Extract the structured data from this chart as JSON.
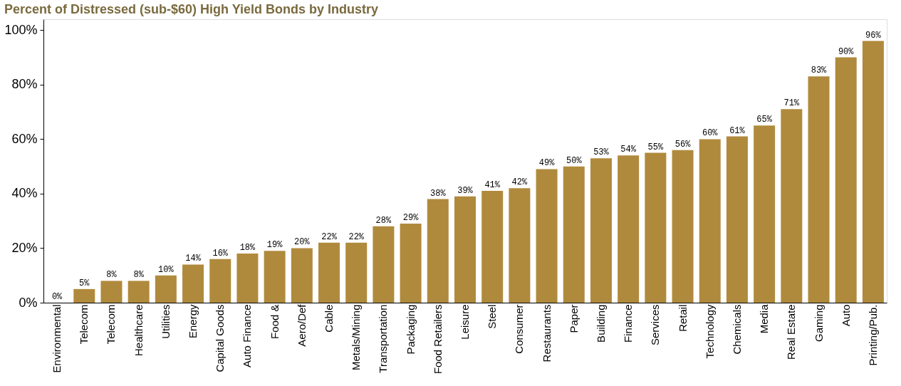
{
  "chart_data": {
    "type": "bar",
    "title": "Percent of Distressed (sub-$60) High Yield Bonds by Industry",
    "categories": [
      "Environmental",
      "Telecom",
      "Telecom",
      "Healthcare",
      "Utilities",
      "Energy",
      "Capital Goods",
      "Auto Finance",
      "Food &",
      "Aero/Def",
      "Cable",
      "Metals/Mining",
      "Transportation",
      "Packaging",
      "Food Retailers",
      "Leisure",
      "Steel",
      "Consumer",
      "Restaurants",
      "Paper",
      "Building",
      "Finance",
      "Services",
      "Retail",
      "Technology",
      "Chemicals",
      "Media",
      "Real Estate",
      "Gaming",
      "Auto",
      "Printing/Pub."
    ],
    "values": [
      0,
      5,
      8,
      8,
      10,
      14,
      16,
      18,
      19,
      20,
      22,
      22,
      28,
      29,
      38,
      39,
      41,
      42,
      49,
      50,
      53,
      54,
      55,
      56,
      60,
      61,
      65,
      71,
      83,
      90,
      96
    ],
    "value_labels": [
      "0%",
      "5%",
      "8%",
      "8%",
      "10%",
      "14%",
      "16%",
      "18%",
      "19%",
      "20%",
      "22%",
      "22%",
      "28%",
      "29%",
      "38%",
      "39%",
      "41%",
      "42%",
      "49%",
      "50%",
      "53%",
      "54%",
      "55%",
      "56%",
      "60%",
      "61%",
      "65%",
      "71%",
      "83%",
      "90%",
      "96%"
    ],
    "color": "#b08a3c",
    "ylim": [
      0,
      104
    ],
    "yticks": [
      {
        "value": 0,
        "label": "0%"
      },
      {
        "value": 20,
        "label": "20%"
      },
      {
        "value": 40,
        "label": "40%"
      },
      {
        "value": 60,
        "label": "60%"
      },
      {
        "value": 80,
        "label": "80%"
      },
      {
        "value": 100,
        "label": "100%"
      }
    ],
    "grid": false
  }
}
